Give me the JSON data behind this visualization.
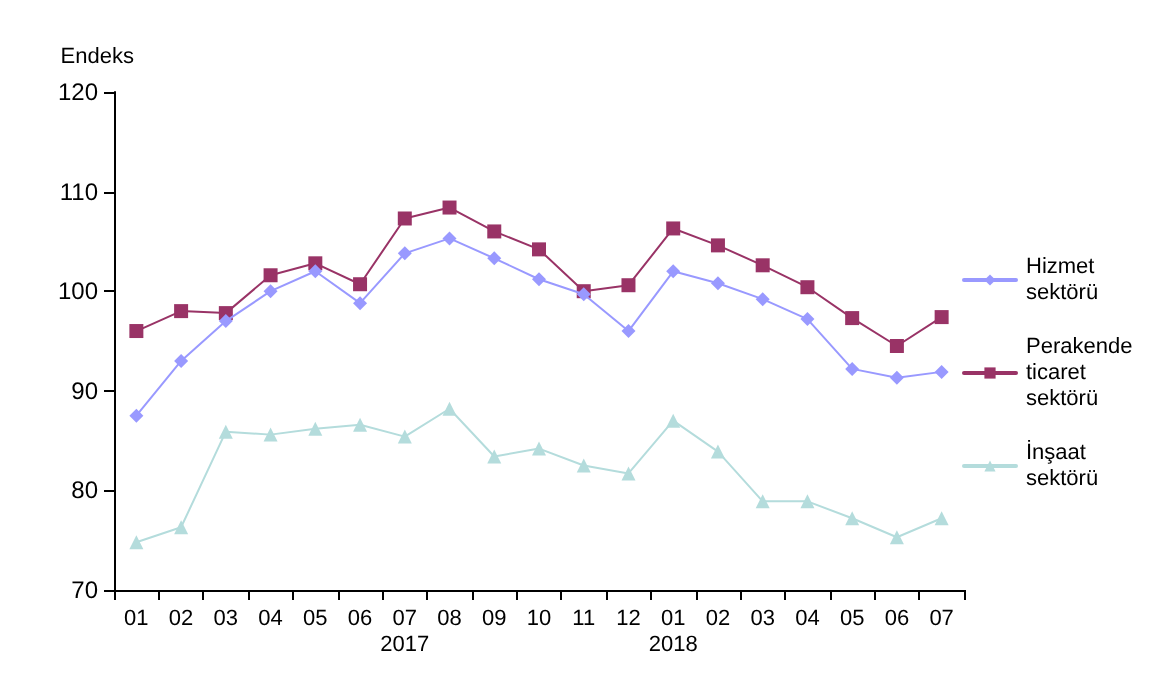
{
  "chart_data": {
    "type": "line",
    "ylabel": "Endeks",
    "categories": [
      "01",
      "02",
      "03",
      "04",
      "05",
      "06",
      "07\n2017",
      "08",
      "09",
      "10",
      "11",
      "12",
      "01\n2018",
      "02",
      "03",
      "04",
      "05",
      "06",
      "07"
    ],
    "series": [
      {
        "name": "Hizmet sektörü",
        "color": "#9999ff",
        "marker": "diamond",
        "values": [
          87.5,
          93,
          97,
          100,
          102,
          98.8,
          103.8,
          105.3,
          103.3,
          101.2,
          99.7,
          96,
          102,
          100.8,
          99.2,
          97.2,
          92.2,
          91.3,
          91.9
        ]
      },
      {
        "name": "Perakende ticaret sektörü",
        "color": "#993366",
        "marker": "square",
        "values": [
          96,
          98,
          97.8,
          101.6,
          102.8,
          100.7,
          107.3,
          108.4,
          106,
          104.2,
          100,
          100.6,
          106.3,
          104.6,
          102.6,
          100.4,
          97.3,
          94.5,
          97.4
        ]
      },
      {
        "name": "İnşaat sektörü",
        "color": "#b4dcdc",
        "marker": "triangle",
        "values": [
          74.8,
          76.3,
          85.9,
          85.6,
          86.2,
          86.6,
          85.4,
          88.2,
          83.4,
          84.2,
          82.5,
          81.7,
          87,
          83.9,
          78.9,
          78.9,
          77.2,
          75.3,
          77.2
        ]
      }
    ],
    "ylim": [
      70,
      120
    ],
    "yticks": [
      70,
      80,
      90,
      100,
      110,
      120
    ],
    "grid": false,
    "legend": "right",
    "line_style": "solid"
  }
}
